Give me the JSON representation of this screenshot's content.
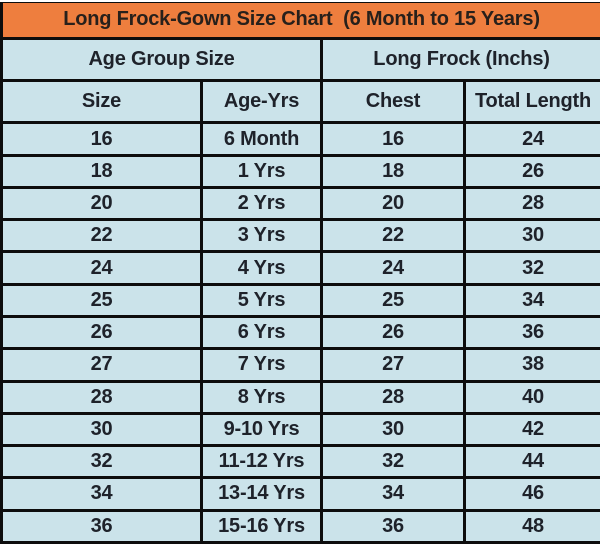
{
  "colors": {
    "title_bg": "#ee7e3e",
    "cell_bg": "#cbe3ea",
    "border": "#0d0d0d",
    "text": "#1e222a",
    "title_text": "#27201b",
    "page_bg": "#ffffff"
  },
  "chart_data": {
    "type": "table",
    "title": "Long Frock-Gown Size Chart  (6 Month to 15 Years)",
    "column_groups": [
      {
        "label": "Age Group Size",
        "colspan": 2
      },
      {
        "label": "Long Frock (Inchs)",
        "colspan": 2
      }
    ],
    "columns": [
      "Size",
      "Age-Yrs",
      "Chest",
      "Total Length"
    ],
    "rows": [
      [
        "16",
        "6 Month",
        "16",
        "24"
      ],
      [
        "18",
        "1 Yrs",
        "18",
        "26"
      ],
      [
        "20",
        "2 Yrs",
        "20",
        "28"
      ],
      [
        "22",
        "3 Yrs",
        "22",
        "30"
      ],
      [
        "24",
        "4 Yrs",
        "24",
        "32"
      ],
      [
        "25",
        "5 Yrs",
        "25",
        "34"
      ],
      [
        "26",
        "6 Yrs",
        "26",
        "36"
      ],
      [
        "27",
        "7 Yrs",
        "27",
        "38"
      ],
      [
        "28",
        "8 Yrs",
        "28",
        "40"
      ],
      [
        "30",
        "9-10 Yrs",
        "30",
        "42"
      ],
      [
        "32",
        "11-12 Yrs",
        "32",
        "44"
      ],
      [
        "34",
        "13-14 Yrs",
        "34",
        "46"
      ],
      [
        "36",
        "15-16 Yrs",
        "36",
        "48"
      ]
    ]
  }
}
